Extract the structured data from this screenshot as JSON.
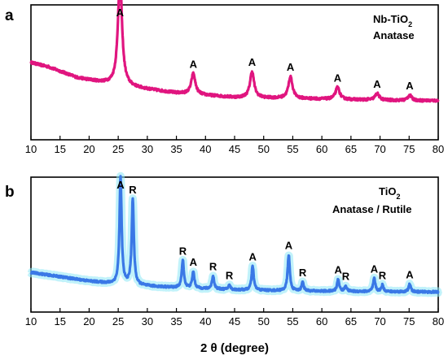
{
  "chart_data": [
    {
      "type": "line",
      "panel": "a",
      "legend": {
        "line1": "Nb-TiO",
        "line1_sub": "2",
        "line2": "Anatase",
        "placement": "top-right"
      },
      "xlim": [
        10,
        80
      ],
      "x_ticks": [
        10,
        15,
        20,
        25,
        30,
        35,
        40,
        45,
        50,
        55,
        60,
        65,
        70,
        75,
        80
      ],
      "color": "#e0157f",
      "baseline": [
        [
          10,
          0.56
        ],
        [
          13,
          0.52
        ],
        [
          18,
          0.42
        ],
        [
          25,
          0.35
        ],
        [
          35,
          0.28
        ],
        [
          45,
          0.24
        ],
        [
          55,
          0.23
        ],
        [
          65,
          0.22
        ],
        [
          75,
          0.21
        ],
        [
          80,
          0.21
        ]
      ],
      "peaks": [
        {
          "x": 25.3,
          "height": 1.0,
          "label": "A"
        },
        {
          "x": 37.9,
          "height": 0.19,
          "label": "A"
        },
        {
          "x": 48.0,
          "height": 0.24,
          "label": "A"
        },
        {
          "x": 54.6,
          "height": 0.2,
          "label": "A"
        },
        {
          "x": 62.7,
          "height": 0.11,
          "label": "A"
        },
        {
          "x": 69.5,
          "height": 0.06,
          "label": "A"
        },
        {
          "x": 75.1,
          "height": 0.05,
          "label": "A"
        }
      ]
    },
    {
      "type": "line",
      "panel": "b",
      "legend": {
        "line1": "TiO",
        "line1_sub": "2",
        "line2": "Anatase / Rutile",
        "placement": "top-right"
      },
      "xlim": [
        10,
        80
      ],
      "x_ticks": [
        10,
        15,
        20,
        25,
        30,
        35,
        40,
        45,
        50,
        55,
        60,
        65,
        70,
        75,
        80
      ],
      "color": "#3a78e6",
      "xlabel": "2 θ (degree)",
      "baseline": [
        [
          10,
          0.2
        ],
        [
          15,
          0.16
        ],
        [
          20,
          0.12
        ],
        [
          25,
          0.09
        ],
        [
          35,
          0.06
        ],
        [
          45,
          0.04
        ],
        [
          55,
          0.03
        ],
        [
          65,
          0.025
        ],
        [
          80,
          0.02
        ]
      ],
      "peaks": [
        {
          "x": 25.4,
          "height": 0.98,
          "label": "A"
        },
        {
          "x": 27.5,
          "height": 0.78,
          "label": "R"
        },
        {
          "x": 36.1,
          "height": 0.25,
          "label": "R"
        },
        {
          "x": 37.9,
          "height": 0.15,
          "label": "A"
        },
        {
          "x": 41.3,
          "height": 0.12,
          "label": "R"
        },
        {
          "x": 44.1,
          "height": 0.04,
          "label": "R"
        },
        {
          "x": 48.1,
          "height": 0.22,
          "label": "A"
        },
        {
          "x": 54.3,
          "height": 0.33,
          "label": "A"
        },
        {
          "x": 56.7,
          "height": 0.08,
          "label": "R"
        },
        {
          "x": 62.8,
          "height": 0.11,
          "label": "A"
        },
        {
          "x": 64.1,
          "height": 0.05,
          "label": "R"
        },
        {
          "x": 69.0,
          "height": 0.12,
          "label": "A"
        },
        {
          "x": 70.4,
          "height": 0.06,
          "label": "R"
        },
        {
          "x": 75.1,
          "height": 0.07,
          "label": "A"
        }
      ]
    }
  ]
}
